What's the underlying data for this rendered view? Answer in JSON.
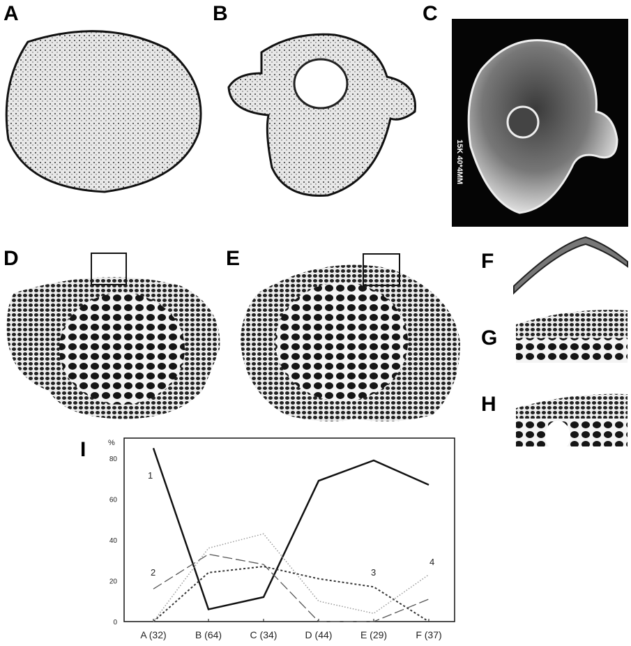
{
  "panels": {
    "A": {
      "label": "A"
    },
    "B": {
      "label": "B"
    },
    "C": {
      "label": "C",
      "scale_bar_text": "15K 40*4MM"
    },
    "D": {
      "label": "D"
    },
    "E": {
      "label": "E"
    },
    "F": {
      "label": "F"
    },
    "G": {
      "label": "G"
    },
    "H": {
      "label": "H"
    },
    "I": {
      "label": "I"
    }
  },
  "chart_data": {
    "type": "line",
    "ylabel": "%",
    "ylim": [
      0,
      90
    ],
    "yticks": [
      "0",
      "20",
      "40",
      "60",
      "80"
    ],
    "categories": [
      "A (32)",
      "B (64)",
      "C (34)",
      "D (44)",
      "E (29)",
      "F (37)"
    ],
    "grid": false,
    "series": [
      {
        "name": "1",
        "style": "solid",
        "color": "#111111",
        "values": [
          85,
          6,
          12,
          69,
          79,
          67
        ]
      },
      {
        "name": "2",
        "style": "long-dash",
        "color": "#555555",
        "values": [
          16,
          33,
          28,
          0,
          0,
          11
        ]
      },
      {
        "name": "3",
        "style": "short-dot",
        "color": "#333333",
        "values": [
          0,
          24,
          27,
          21,
          17,
          0
        ]
      },
      {
        "name": "4",
        "style": "light-dot",
        "color": "#999999",
        "values": [
          0,
          36,
          43,
          10,
          4,
          23
        ]
      }
    ]
  }
}
